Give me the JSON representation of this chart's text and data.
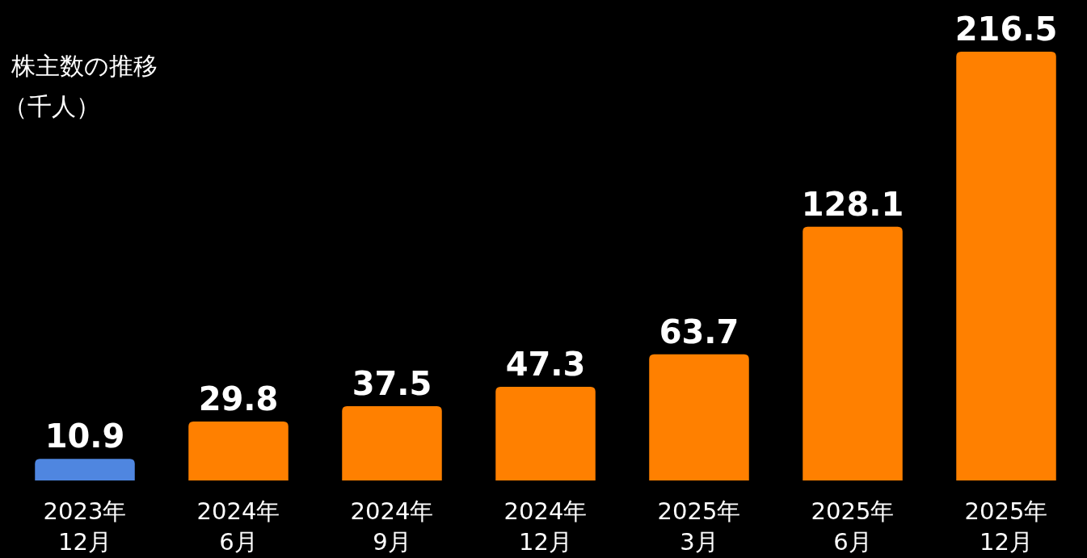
{
  "chart_data": {
    "type": "bar",
    "title": "株主数の推移",
    "subtitle": "（千人）",
    "categories": [
      "2023年\n12月",
      "2024年\n6月",
      "2024年\n9月",
      "2024年\n12月",
      "2025年\n3月",
      "2025年\n6月",
      "2025年\n12月"
    ],
    "values": [
      10.9,
      29.8,
      37.5,
      47.3,
      63.7,
      128.1,
      216.5
    ],
    "colors": [
      "#4f86e0",
      "#ff8000",
      "#ff8000",
      "#ff8000",
      "#ff8000",
      "#ff8000",
      "#ff8000"
    ],
    "data_labels": true
  }
}
